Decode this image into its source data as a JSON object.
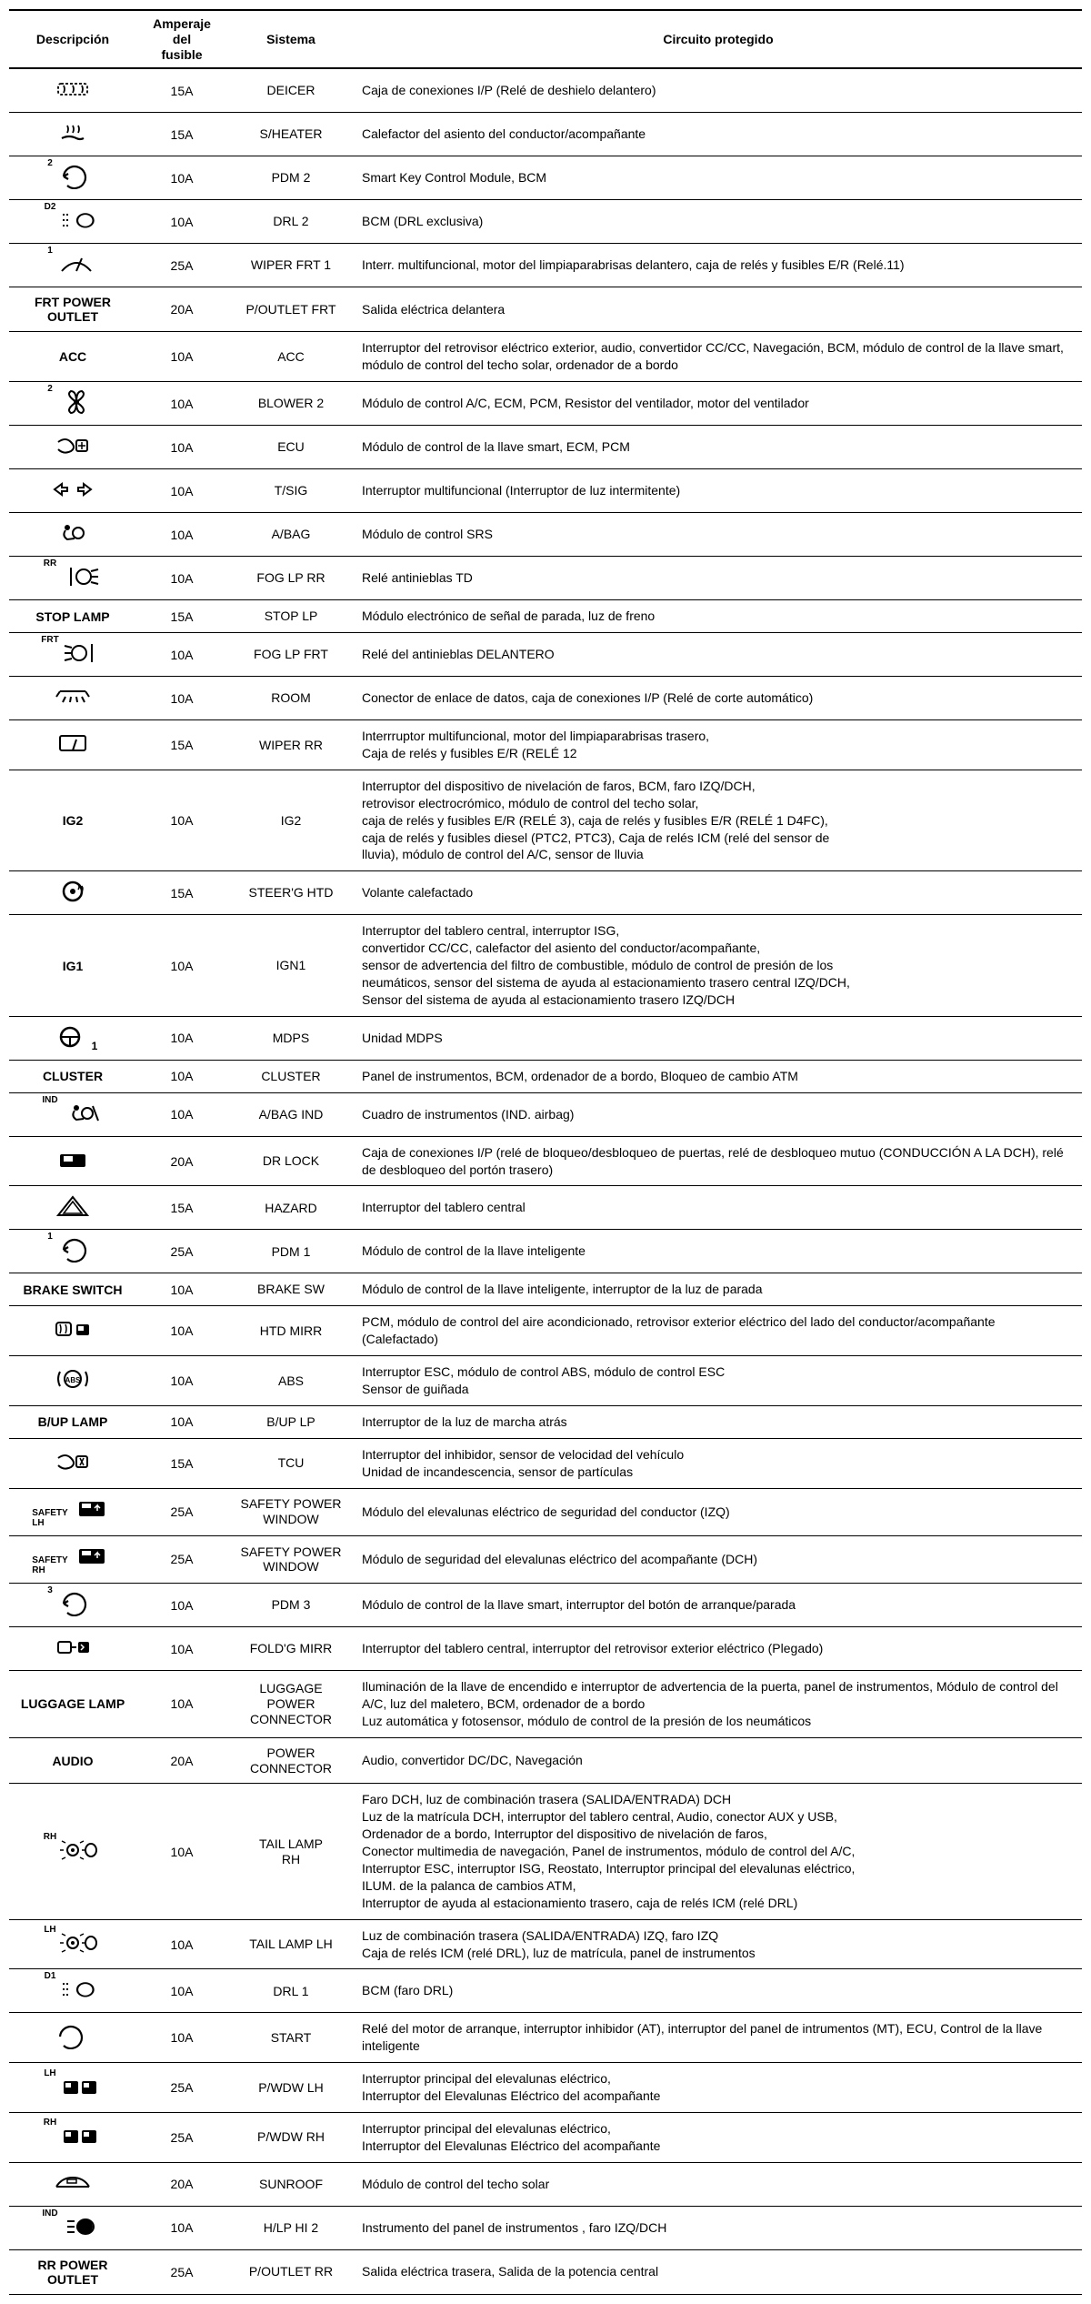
{
  "headers": {
    "desc": "Descripción",
    "amp": "Amperaje del\nfusible",
    "sys": "Sistema",
    "circ": "Circuito protegido"
  },
  "rows": [
    {
      "desc_icon": "deicer",
      "amp": "15A",
      "sys": "DEICER",
      "circ": "Caja de conexiones I/P (Relé de deshielo delantero)"
    },
    {
      "desc_icon": "sheater",
      "amp": "15A",
      "sys": "S/HEATER",
      "circ": "Calefactor del asiento del conductor/acompañante"
    },
    {
      "desc_icon": "pdm2",
      "desc_sup": "2",
      "amp": "10A",
      "sys": "PDM 2",
      "circ": "Smart Key Control Module, BCM"
    },
    {
      "desc_icon": "drl",
      "desc_sup": "D2",
      "amp": "10A",
      "sys": "DRL 2",
      "circ": "BCM (DRL exclusiva)"
    },
    {
      "desc_icon": "wiper",
      "desc_sup": "1",
      "amp": "25A",
      "sys": "WIPER FRT 1",
      "circ": "Interr. multifuncional, motor del limpiaparabrisas delantero, caja de relés y fusibles E/R (Relé.11)"
    },
    {
      "desc_text": "FRT POWER OUTLET",
      "amp": "20A",
      "sys": "P/OUTLET FRT",
      "circ": "Salida eléctrica delantera"
    },
    {
      "desc_text": "ACC",
      "amp": "10A",
      "sys": "ACC",
      "circ": "Interruptor del retrovisor eléctrico exterior, audio, convertidor CC/CC, Navegación, BCM, módulo de control de la llave smart, módulo de control del techo solar, ordenador de a bordo"
    },
    {
      "desc_icon": "blower",
      "desc_sup": "2",
      "amp": "10A",
      "sys": "BLOWER 2",
      "circ": "Módulo de control A/C, ECM, PCM, Resistor del ventilador, motor del ventilador"
    },
    {
      "desc_icon": "ecu",
      "amp": "10A",
      "sys": "ECU",
      "circ": "Módulo de control de la llave smart, ECM, PCM"
    },
    {
      "desc_icon": "tsig",
      "amp": "10A",
      "sys": "T/SIG",
      "circ": "Interruptor multifuncional (Interruptor de luz intermitente)"
    },
    {
      "desc_icon": "abag",
      "amp": "10A",
      "sys": "A/BAG",
      "circ": "Módulo de control SRS"
    },
    {
      "desc_icon": "fogrr",
      "desc_sup": "RR",
      "amp": "10A",
      "sys": "FOG LP RR",
      "circ": "Relé antinieblas TD"
    },
    {
      "desc_text": "STOP LAMP",
      "amp": "15A",
      "sys": "STOP LP",
      "circ": "Módulo electrónico de señal de parada, luz de freno"
    },
    {
      "desc_icon": "fogfrt",
      "desc_sup": "FRT",
      "amp": "10A",
      "sys": "FOG LP FRT",
      "circ": "Relé del antinieblas DELANTERO"
    },
    {
      "desc_icon": "room",
      "amp": "10A",
      "sys": "ROOM",
      "circ": "Conector de enlace de datos, caja de conexiones I/P (Relé de corte automático)"
    },
    {
      "desc_icon": "wiperrr",
      "amp": "15A",
      "sys": "WIPER RR",
      "circ": "Interrruptor multifuncional, motor del limpiaparabrisas trasero,\nCaja de relés y fusibles E/R (RELÉ 12"
    },
    {
      "desc_text": "IG2",
      "amp": "10A",
      "sys": "IG2",
      "circ": "Interruptor del dispositivo de nivelación de faros, BCM, faro IZQ/DCH,\nretrovisor electrocrómico, módulo de control del techo solar,\ncaja de relés y fusibles E/R (RELÉ 3), caja de relés y fusibles E/R (RELÉ 1 D4FC),\ncaja de relés y fusibles diesel (PTC2, PTC3), Caja de relés ICM (relé del sensor de\nlluvia), módulo de control del A/C, sensor de lluvia"
    },
    {
      "desc_icon": "steerhtd",
      "amp": "15A",
      "sys": "STEER'G HTD",
      "circ": "Volante calefactado"
    },
    {
      "desc_text": "IG1",
      "amp": "10A",
      "sys": "IGN1",
      "circ": "Interruptor del tablero central, interruptor ISG,\nconvertidor CC/CC, calefactor del asiento del conductor/acompañante,\nsensor de advertencia del filtro de combustible, módulo de control de presión de los\nneumáticos, sensor del sistema de ayuda al estacionamiento trasero central IZQ/DCH,\nSensor del sistema de ayuda al estacionamiento trasero IZQ/DCH"
    },
    {
      "desc_icon": "mdps",
      "desc_post": "1",
      "amp": "10A",
      "sys": "MDPS",
      "circ": "Unidad MDPS"
    },
    {
      "desc_text": "CLUSTER",
      "amp": "10A",
      "sys": "CLUSTER",
      "circ": "Panel de instrumentos, BCM, ordenador de a bordo, Bloqueo de cambio ATM"
    },
    {
      "desc_icon": "abagind",
      "desc_sup": "IND",
      "amp": "10A",
      "sys": "A/BAG IND",
      "circ": "Cuadro de instrumentos (IND. airbag)"
    },
    {
      "desc_icon": "drlock",
      "amp": "20A",
      "sys": "DR LOCK",
      "circ": "Caja de conexiones I/P (relé de bloqueo/desbloqueo de puertas, relé de desbloqueo mutuo (CONDUCCIÓN A LA DCH), relé de desbloqueo del portón trasero)"
    },
    {
      "desc_icon": "hazard",
      "amp": "15A",
      "sys": "HAZARD",
      "circ": "Interruptor del tablero central"
    },
    {
      "desc_icon": "pdm1",
      "desc_sup": "1",
      "amp": "25A",
      "sys": "PDM 1",
      "circ": "Módulo de control de la llave inteligente"
    },
    {
      "desc_text": "BRAKE SWITCH",
      "amp": "10A",
      "sys": "BRAKE SW",
      "circ": "Módulo de control de la llave inteligente, interruptor de la luz de parada"
    },
    {
      "desc_icon": "htdmirr",
      "amp": "10A",
      "sys": "HTD MIRR",
      "circ": "PCM, módulo de control del aire acondicionado, retrovisor exterior eléctrico del lado del conductor/acompañante (Calefactado)"
    },
    {
      "desc_icon": "abs",
      "amp": "10A",
      "sys": "ABS",
      "circ": "Interruptor ESC, módulo de control ABS, módulo de control ESC\nSensor de guiñada"
    },
    {
      "desc_text": "B/UP LAMP",
      "amp": "10A",
      "sys": "B/UP LP",
      "circ": "Interruptor de la luz de marcha atrás"
    },
    {
      "desc_icon": "tcu",
      "amp": "15A",
      "sys": "TCU",
      "circ": "Interruptor del inhibidor, sensor de velocidad del vehículo\nUnidad de incandescencia, sensor de partículas"
    },
    {
      "desc_icon": "safetylh",
      "desc_pre": "SAFETY\nLH",
      "amp": "25A",
      "sys": "SAFETY POWER\nWINDOW",
      "circ": "Módulo del elevalunas eléctrico de seguridad del conductor (IZQ)"
    },
    {
      "desc_icon": "safetyrh",
      "desc_pre": "SAFETY\nRH",
      "amp": "25A",
      "sys": "SAFETY POWER\nWINDOW",
      "circ": "Módulo de seguridad del elevalunas eléctrico del acompañante (DCH)"
    },
    {
      "desc_icon": "pdm3",
      "desc_sup": "3",
      "amp": "10A",
      "sys": "PDM 3",
      "circ": "Módulo de control de la llave smart, interruptor del botón de arranque/parada"
    },
    {
      "desc_icon": "foldmirr",
      "amp": "10A",
      "sys": "FOLD'G MIRR",
      "circ": "Interruptor del tablero central, interruptor del retrovisor exterior eléctrico (Plegado)"
    },
    {
      "desc_text": "LUGGAGE LAMP",
      "amp": "10A",
      "sys": "LUGGAGE\nPOWER\nCONNECTOR",
      "circ": "Iluminación de la llave de encendido e interruptor de advertencia de la puerta, panel de instrumentos, Módulo de control del A/C, luz del maletero, BCM, ordenador de a bordo\nLuz automática y fotosensor, módulo de control de la presión de los neumáticos"
    },
    {
      "desc_text": "AUDIO",
      "amp": "20A",
      "sys": "POWER\nCONNECTOR",
      "circ": "Audio, convertidor DC/DC, Navegación"
    },
    {
      "desc_icon": "tailrh",
      "desc_sup": "RH",
      "amp": "10A",
      "sys": "TAIL LAMP\nRH",
      "circ": "Faro DCH, luz de combinación trasera (SALIDA/ENTRADA) DCH\nLuz de la matrícula DCH, interruptor del tablero central, Audio, conector AUX y USB,\nOrdenador de a bordo, Interruptor del dispositivo de nivelación de faros,\nConector multimedia de navegación, Panel de instrumentos, módulo de control del A/C,\nInterruptor ESC, interruptor ISG, Reostato, Interruptor principal del elevalunas eléctrico,\nILUM. de la palanca de cambios ATM,\nInterruptor de ayuda al estacionamiento trasero, caja de relés ICM (relé DRL)"
    },
    {
      "desc_icon": "taillh",
      "desc_sup": "LH",
      "amp": "10A",
      "sys": "TAIL LAMP LH",
      "circ": "Luz de combinación trasera (SALIDA/ENTRADA) IZQ, faro IZQ\nCaja de relés ICM (relé DRL), luz de matrícula, panel de instrumentos"
    },
    {
      "desc_icon": "drl",
      "desc_sup": "D1",
      "amp": "10A",
      "sys": "DRL 1",
      "circ": "BCM (faro DRL)"
    },
    {
      "desc_icon": "start",
      "amp": "10A",
      "sys": "START",
      "circ": "Relé del motor de arranque, interruptor inhibidor (AT), interruptor del panel de intrumentos (MT), ECU, Control de la llave inteligente"
    },
    {
      "desc_icon": "pwdw",
      "desc_sup": "LH",
      "amp": "25A",
      "sys": "P/WDW LH",
      "circ": "Interruptor principal del elevalunas eléctrico,\nInterruptor del Elevalunas Eléctrico del acompañante"
    },
    {
      "desc_icon": "pwdw",
      "desc_sup": "RH",
      "amp": "25A",
      "sys": "P/WDW RH",
      "circ": "Interruptor principal del elevalunas eléctrico,\nInterruptor del Elevalunas Eléctrico del acompañante"
    },
    {
      "desc_icon": "sunroof",
      "amp": "20A",
      "sys": "SUNROOF",
      "circ": "Módulo de control del techo solar"
    },
    {
      "desc_icon": "hlp",
      "desc_sup": "IND",
      "amp": "10A",
      "sys": "H/LP HI 2",
      "circ": "Instrumento del panel de instrumentos , faro IZQ/DCH"
    },
    {
      "desc_text": "RR POWER OUTLET",
      "amp": "25A",
      "sys": "P/OUTLET RR",
      "circ": "Salida eléctrica trasera, Salida de la potencia central"
    }
  ]
}
